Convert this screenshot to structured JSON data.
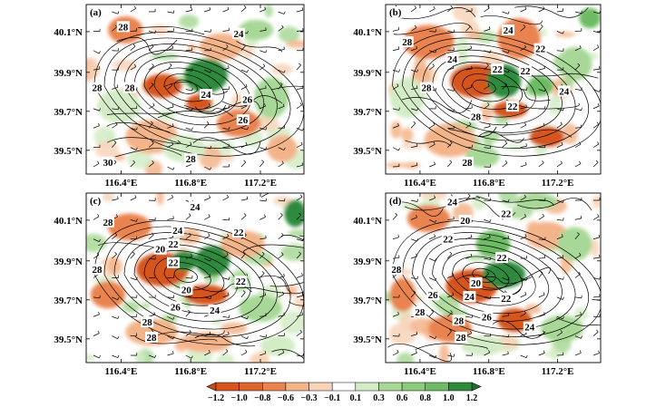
{
  "colors": {
    "orange_dark": "#d6541e",
    "orange_mid": "#e9834f",
    "orange_light": "#f3b48a",
    "orange_pale": "#f8d3b8",
    "green_pale": "#d3ecc6",
    "green_light": "#a8d897",
    "green_mid": "#6dbc63",
    "green_dark": "#2f8a3c",
    "contour": "#000000"
  },
  "axes": {
    "x_ticks": [
      "116.4°E",
      "116.8°E",
      "117.2°E"
    ],
    "y_ticks": [
      "40.1°N",
      "39.9°N",
      "39.7°N",
      "39.5°N"
    ]
  },
  "panels": [
    {
      "label": "(a)",
      "contour_labels": [
        "28",
        "24",
        "28",
        "28",
        "24",
        "26",
        "26",
        "28",
        "30"
      ]
    },
    {
      "label": "(b)",
      "contour_labels": [
        "28",
        "24",
        "22",
        "24",
        "22",
        "28",
        "22",
        "24",
        "28",
        "22",
        "28"
      ]
    },
    {
      "label": "(c)",
      "contour_labels": [
        "28",
        "24",
        "22",
        "24",
        "20",
        "22",
        "28",
        "22",
        "20",
        "22",
        "26",
        "24",
        "28",
        "28"
      ]
    },
    {
      "label": "(d)",
      "contour_labels": [
        "24",
        "22",
        "20",
        "22",
        "28",
        "22",
        "28",
        "20",
        "26",
        "24",
        "22",
        "28",
        "28",
        "26",
        "24"
      ]
    }
  ],
  "colorbar": {
    "labels": [
      "-1.2",
      "-1.0",
      "-0.8",
      "-0.6",
      "-0.3",
      "-0.1",
      "0.1",
      "0.3",
      "0.6",
      "0.8",
      "1.0",
      "1.2"
    ]
  }
}
